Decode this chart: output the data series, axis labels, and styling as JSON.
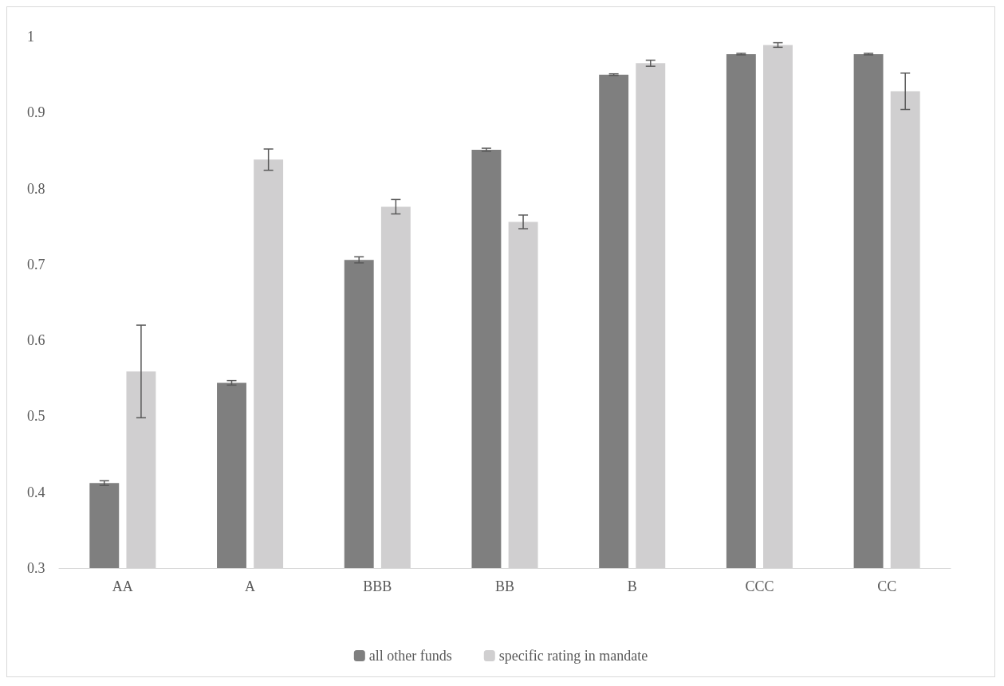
{
  "chart_data": {
    "type": "bar",
    "categories": [
      "AA",
      "A",
      "BBB",
      "BB",
      "B",
      "CCC",
      "CC"
    ],
    "series": [
      {
        "name": "all other funds",
        "color": "#7f7f7f",
        "values": [
          0.412,
          0.544,
          0.706,
          0.851,
          0.95,
          0.977,
          0.977
        ],
        "errors": [
          0.003,
          0.003,
          0.004,
          0.002,
          0.001,
          0.001,
          0.001
        ]
      },
      {
        "name": "specific rating in mandate",
        "color": "#d0cfd0",
        "values": [
          0.559,
          0.838,
          0.776,
          0.756,
          0.965,
          0.989,
          0.928
        ],
        "errors": [
          0.061,
          0.014,
          0.0095,
          0.009,
          0.004,
          0.003,
          0.024
        ]
      }
    ],
    "ylim": [
      0.3,
      1.0
    ],
    "yticks": [
      0.3,
      0.4,
      0.5,
      0.6,
      0.7,
      0.8,
      0.9,
      1
    ],
    "grid": false,
    "legend": "bottom"
  }
}
